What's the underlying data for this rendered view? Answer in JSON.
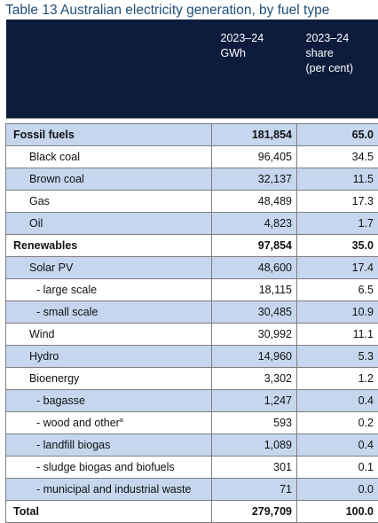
{
  "title": "Table 13 Australian electricity generation, by fuel type",
  "columns": [
    {
      "line1": "2023–24",
      "line2": "GWh",
      "line3": ""
    },
    {
      "line1": "2023–24",
      "line2": "share",
      "line3": "(per cent)"
    }
  ],
  "rows": [
    {
      "label": "Fossil fuels",
      "gwh": "181,854",
      "share": "65.0"
    },
    {
      "label": "Black coal",
      "gwh": "96,405",
      "share": "34.5"
    },
    {
      "label": "Brown coal",
      "gwh": "32,137",
      "share": "11.5"
    },
    {
      "label": "Gas",
      "gwh": "48,489",
      "share": "17.3"
    },
    {
      "label": "Oil",
      "gwh": "4,823",
      "share": "1.7"
    },
    {
      "label": "Renewables",
      "gwh": "97,854",
      "share": "35.0"
    },
    {
      "label": "Solar PV",
      "gwh": "48,600",
      "share": "17.4"
    },
    {
      "label": "- large scale",
      "gwh": "18,115",
      "share": "6.5"
    },
    {
      "label": "- small scale",
      "gwh": "30,485",
      "share": "10.9"
    },
    {
      "label": "Wind",
      "gwh": "30,992",
      "share": "11.1"
    },
    {
      "label": "Hydro",
      "gwh": "14,960",
      "share": "5.3"
    },
    {
      "label": "Bioenergy",
      "gwh": "3,302",
      "share": "1.2"
    },
    {
      "label": "- bagasse",
      "gwh": "1,247",
      "share": "0.4"
    },
    {
      "label": "- wood and other",
      "note": "a",
      "gwh": "593",
      "share": "0.2"
    },
    {
      "label": "- landfill biogas",
      "gwh": "1,089",
      "share": "0.4"
    },
    {
      "label": "- sludge biogas and biofuels",
      "gwh": "301",
      "share": "0.1"
    },
    {
      "label": "- municipal and industrial waste",
      "gwh": "71",
      "share": "0.0"
    }
  ],
  "total": {
    "label": "Total",
    "gwh": "279,709",
    "share": "100.0"
  }
}
